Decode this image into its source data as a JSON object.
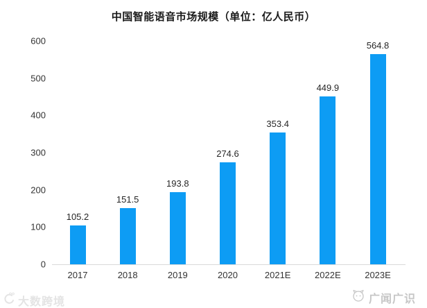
{
  "chart_data": {
    "type": "bar",
    "title": "中国智能语音市场规模（单位：亿人民币）",
    "categories": [
      "2017",
      "2018",
      "2019",
      "2020",
      "2021E",
      "2022E",
      "2023E"
    ],
    "values": [
      105.2,
      151.5,
      193.8,
      274.6,
      353.4,
      449.9,
      564.8
    ],
    "value_labels": [
      "105.2",
      "151.5",
      "193.8",
      "274.6",
      "353.4",
      "449.9",
      "564.8"
    ],
    "xlabel": "",
    "ylabel": "",
    "ylim": [
      0,
      600
    ],
    "yticks": [
      0,
      100,
      200,
      300,
      400,
      500,
      600
    ],
    "grid": false,
    "legend_position": "none",
    "data_labels_shown": true
  },
  "colors": {
    "bar": "#0d9cf4",
    "axis_line": "#d9d9d9",
    "text": "#262626",
    "watermark_left": "#e4e4e4",
    "watermark_right": "#c6c6c6"
  },
  "watermarks": {
    "bottom_left_text": "大数跨境",
    "bottom_right_text": "广闻广识"
  }
}
